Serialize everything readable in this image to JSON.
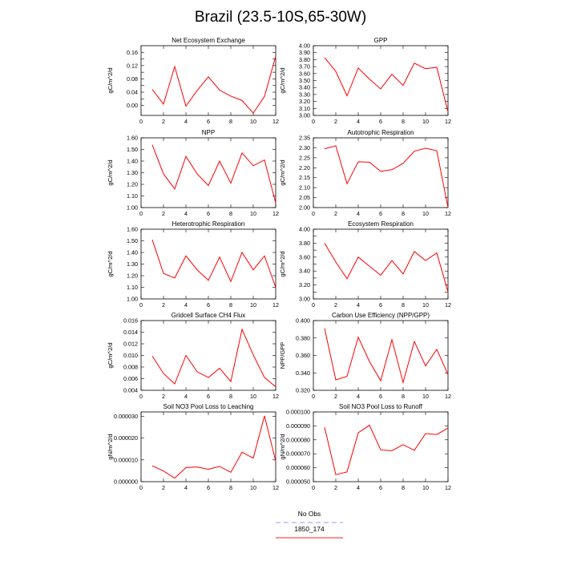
{
  "figure": {
    "title": "Brazil (23.5-10S,65-30W)"
  },
  "legend": {
    "entries": [
      {
        "label": "No Obs",
        "color": "#aaaaff",
        "dash": "dashed"
      },
      {
        "label": "1850_174",
        "color": "#ff4b4b",
        "dash": "solid"
      }
    ]
  },
  "colors": {
    "model_line": "#ff0000",
    "axis": "#000000"
  },
  "chart_data": [
    {
      "type": "line",
      "title": "Net Ecosystem Exchange",
      "ylabel": "gC/m^2/d",
      "xlim": [
        0,
        12
      ],
      "ylim": [
        -0.03,
        0.18
      ],
      "xticks": [
        0,
        2,
        4,
        6,
        8,
        10,
        12
      ],
      "xtick_labels": [
        "0",
        "2",
        "4",
        "6",
        "8",
        "10",
        "12"
      ],
      "yticks": [
        0.0,
        0.02,
        0.04,
        0.06,
        0.08,
        0.1,
        0.12,
        0.14,
        0.16
      ],
      "ytick_labels": [
        "0.00",
        "",
        "0.04",
        "",
        "0.08",
        "",
        "0.12",
        "",
        "0.16"
      ],
      "x": [
        1,
        2,
        3,
        4,
        5,
        6,
        7,
        8,
        9,
        10,
        11,
        12
      ],
      "series": [
        {
          "values": [
            0.048,
            0.004,
            0.117,
            -0.002,
            0.045,
            0.086,
            0.046,
            0.028,
            0.015,
            -0.023,
            0.027,
            0.148
          ]
        }
      ]
    },
    {
      "type": "line",
      "title": "GPP",
      "ylabel": "gC/m^2/d",
      "xlim": [
        0,
        12
      ],
      "ylim": [
        3.0,
        4.0
      ],
      "xticks": [
        0,
        2,
        4,
        6,
        8,
        10,
        12
      ],
      "xtick_labels": [
        "0",
        "2",
        "4",
        "6",
        "8",
        "10",
        "12"
      ],
      "yticks": [
        3.0,
        3.1,
        3.2,
        3.3,
        3.4,
        3.5,
        3.6,
        3.7,
        3.8,
        3.9,
        4.0
      ],
      "ytick_labels": [
        "3.00",
        "3.10",
        "3.20",
        "3.30",
        "3.40",
        "3.50",
        "3.60",
        "3.70",
        "3.80",
        "3.90",
        "4.00"
      ],
      "x": [
        1,
        2,
        3,
        4,
        5,
        6,
        7,
        8,
        9,
        10,
        11,
        12
      ],
      "series": [
        {
          "values": [
            3.83,
            3.63,
            3.28,
            3.68,
            3.52,
            3.38,
            3.59,
            3.43,
            3.75,
            3.67,
            3.69,
            3.05
          ]
        }
      ]
    },
    {
      "type": "line",
      "title": "NPP",
      "ylabel": "gC/m^2/d",
      "xlim": [
        0,
        12
      ],
      "ylim": [
        1.0,
        1.6
      ],
      "xticks": [
        0,
        2,
        4,
        6,
        8,
        10,
        12
      ],
      "xtick_labels": [
        "0",
        "2",
        "4",
        "6",
        "8",
        "10",
        "12"
      ],
      "yticks": [
        1.0,
        1.1,
        1.2,
        1.3,
        1.4,
        1.5,
        1.6
      ],
      "ytick_labels": [
        "1.00",
        "1.10",
        "1.20",
        "1.30",
        "1.40",
        "1.50",
        "1.60"
      ],
      "x": [
        1,
        2,
        3,
        4,
        5,
        6,
        7,
        8,
        9,
        10,
        11,
        12
      ],
      "series": [
        {
          "values": [
            1.54,
            1.29,
            1.16,
            1.44,
            1.29,
            1.19,
            1.4,
            1.21,
            1.47,
            1.36,
            1.41,
            1.04
          ]
        }
      ]
    },
    {
      "type": "line",
      "title": "Autotrophic Respiration",
      "ylabel": "gC/m^2/d",
      "xlim": [
        0,
        12
      ],
      "ylim": [
        2.0,
        2.35
      ],
      "xticks": [
        0,
        2,
        4,
        6,
        8,
        10,
        12
      ],
      "xtick_labels": [
        "0",
        "2",
        "4",
        "6",
        "8",
        "10",
        "12"
      ],
      "yticks": [
        2.0,
        2.05,
        2.1,
        2.15,
        2.2,
        2.25,
        2.3,
        2.35
      ],
      "ytick_labels": [
        "2.00",
        "2.05",
        "2.10",
        "2.15",
        "2.20",
        "2.25",
        "2.30",
        "2.35"
      ],
      "x": [
        1,
        2,
        3,
        4,
        5,
        6,
        7,
        8,
        9,
        10,
        11,
        12
      ],
      "series": [
        {
          "values": [
            2.295,
            2.31,
            2.12,
            2.23,
            2.228,
            2.182,
            2.19,
            2.222,
            2.283,
            2.298,
            2.285,
            2.0
          ]
        }
      ]
    },
    {
      "type": "line",
      "title": "Heterotrophic Respiration",
      "ylabel": "gC/m^2/d",
      "xlim": [
        0,
        12
      ],
      "ylim": [
        1.0,
        1.6
      ],
      "xticks": [
        0,
        2,
        4,
        6,
        8,
        10,
        12
      ],
      "xtick_labels": [
        "0",
        "2",
        "4",
        "6",
        "8",
        "10",
        "12"
      ],
      "yticks": [
        1.0,
        1.1,
        1.2,
        1.3,
        1.4,
        1.5,
        1.6
      ],
      "ytick_labels": [
        "1.00",
        "1.10",
        "1.20",
        "1.30",
        "1.40",
        "1.50",
        "1.60"
      ],
      "x": [
        1,
        2,
        3,
        4,
        5,
        6,
        7,
        8,
        9,
        10,
        11,
        12
      ],
      "series": [
        {
          "values": [
            1.51,
            1.22,
            1.18,
            1.37,
            1.25,
            1.16,
            1.36,
            1.15,
            1.4,
            1.25,
            1.37,
            1.1
          ]
        }
      ]
    },
    {
      "type": "line",
      "title": "Ecosystem Respiration",
      "ylabel": "gC/m^2/d",
      "xlim": [
        0,
        12
      ],
      "ylim": [
        3.0,
        4.0
      ],
      "xticks": [
        0,
        2,
        4,
        6,
        8,
        10,
        12
      ],
      "xtick_labels": [
        "0",
        "2",
        "4",
        "6",
        "8",
        "10",
        "12"
      ],
      "yticks": [
        3.0,
        3.1,
        3.2,
        3.3,
        3.4,
        3.5,
        3.6,
        3.7,
        3.8,
        3.9,
        4.0
      ],
      "ytick_labels": [
        "3.00",
        "",
        "3.20",
        "",
        "3.40",
        "",
        "3.60",
        "",
        "3.80",
        "",
        "4.00"
      ],
      "x": [
        1,
        2,
        3,
        4,
        5,
        6,
        7,
        8,
        9,
        10,
        11,
        12
      ],
      "series": [
        {
          "values": [
            3.8,
            3.53,
            3.29,
            3.6,
            3.47,
            3.34,
            3.55,
            3.36,
            3.68,
            3.55,
            3.66,
            3.1
          ]
        }
      ]
    },
    {
      "type": "line",
      "title": "Gridcell Surface CH4 Flux",
      "ylabel": "gC/m^2/d",
      "xlim": [
        0,
        12
      ],
      "ylim": [
        0.004,
        0.016
      ],
      "xticks": [
        0,
        2,
        4,
        6,
        8,
        10,
        12
      ],
      "xtick_labels": [
        "0",
        "2",
        "4",
        "6",
        "8",
        "10",
        "12"
      ],
      "yticks": [
        0.004,
        0.006,
        0.008,
        0.01,
        0.012,
        0.014,
        0.016
      ],
      "ytick_labels": [
        "0.004",
        "0.006",
        "0.008",
        "0.010",
        "0.012",
        "0.014",
        "0.016"
      ],
      "x": [
        1,
        2,
        3,
        4,
        5,
        6,
        7,
        8,
        9,
        10,
        11,
        12
      ],
      "series": [
        {
          "values": [
            0.0099,
            0.0069,
            0.0051,
            0.01,
            0.0072,
            0.0062,
            0.0078,
            0.0055,
            0.0145,
            0.0101,
            0.0062,
            0.0046
          ]
        }
      ]
    },
    {
      "type": "line",
      "title": "Carbon Use Efficiency (NPP/GPP)",
      "ylabel": "NPP/GPP",
      "xlim": [
        0,
        12
      ],
      "ylim": [
        0.32,
        0.4
      ],
      "xticks": [
        0,
        2,
        4,
        6,
        8,
        10,
        12
      ],
      "xtick_labels": [
        "0",
        "2",
        "4",
        "6",
        "8",
        "10",
        "12"
      ],
      "yticks": [
        0.32,
        0.34,
        0.36,
        0.38,
        0.4
      ],
      "ytick_labels": [
        "0.320",
        "0.340",
        "0.360",
        "0.380",
        "0.400"
      ],
      "x": [
        1,
        2,
        3,
        4,
        5,
        6,
        7,
        8,
        9,
        10,
        11,
        12
      ],
      "series": [
        {
          "values": [
            0.391,
            0.332,
            0.336,
            0.381,
            0.353,
            0.331,
            0.378,
            0.329,
            0.376,
            0.348,
            0.367,
            0.338
          ]
        }
      ]
    },
    {
      "type": "line",
      "title": "Soil NO3 Pool Loss to Leaching",
      "ylabel": "gN/m^2/d",
      "xlim": [
        0,
        12
      ],
      "ylim": [
        0.0,
        3.2e-05
      ],
      "xticks": [
        0,
        2,
        4,
        6,
        8,
        10,
        12
      ],
      "xtick_labels": [
        "0",
        "2",
        "4",
        "6",
        "8",
        "10",
        "12"
      ],
      "yticks": [
        0.0,
        1e-05,
        2e-05,
        3e-05
      ],
      "ytick_labels": [
        "0.000000",
        "0.000010",
        "0.000020",
        "0.000030"
      ],
      "x": [
        1,
        2,
        3,
        4,
        5,
        6,
        7,
        8,
        9,
        10,
        11,
        12
      ],
      "series": [
        {
          "values": [
            7.3e-06,
            4.9e-06,
            1.6e-06,
            6.5e-06,
            6.7e-06,
            5.7e-06,
            7e-06,
            4.3e-06,
            1.35e-05,
            1.08e-05,
            3.02e-05,
            9.4e-06
          ]
        }
      ]
    },
    {
      "type": "line",
      "title": "Soil NO3 Pool Loss to Runoff",
      "ylabel": "gN/m^2/d",
      "xlim": [
        0,
        12
      ],
      "ylim": [
        5e-05,
        0.0001
      ],
      "xticks": [
        0,
        2,
        4,
        6,
        8,
        10,
        12
      ],
      "xtick_labels": [
        "0",
        "2",
        "4",
        "6",
        "8",
        "10",
        "12"
      ],
      "yticks": [
        5e-05,
        6e-05,
        7e-05,
        8e-05,
        9e-05,
        0.0001
      ],
      "ytick_labels": [
        "0.000050",
        "0.000060",
        "0.000070",
        "0.000080",
        "0.000090",
        "0.000100"
      ],
      "x": [
        1,
        2,
        3,
        4,
        5,
        6,
        7,
        8,
        9,
        10,
        11,
        12
      ],
      "series": [
        {
          "values": [
            8.9e-05,
            5.5e-05,
            5.7e-05,
            8.5e-05,
            9.05e-05,
            7.28e-05,
            7.22e-05,
            7.65e-05,
            7.25e-05,
            8.45e-05,
            8.38e-05,
            8.85e-05
          ]
        }
      ]
    }
  ]
}
